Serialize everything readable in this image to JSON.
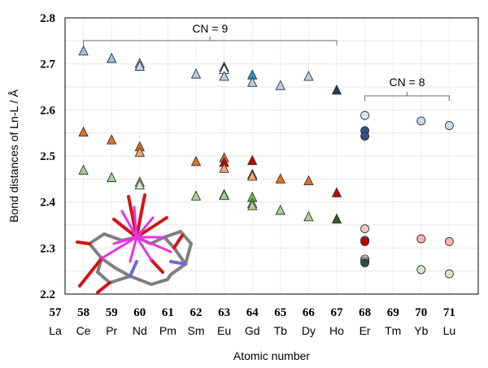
{
  "chart_data": {
    "type": "scatter",
    "xlabel": "Atomic number",
    "ylabel": "Bond distances of Ln-L / Å",
    "ylim": [
      2.2,
      2.8
    ],
    "yticks": [
      "2.8",
      "2.7",
      "2.6",
      "2.5",
      "2.4",
      "2.3",
      "2.2"
    ],
    "xlim": [
      57,
      71
    ],
    "x_ticks": [
      {
        "num": "57",
        "sym": "La"
      },
      {
        "num": "58",
        "sym": "Ce"
      },
      {
        "num": "59",
        "sym": "Pr"
      },
      {
        "num": "60",
        "sym": "Nd"
      },
      {
        "num": "61",
        "sym": "Pm"
      },
      {
        "num": "62",
        "sym": "Sm"
      },
      {
        "num": "63",
        "sym": "Eu"
      },
      {
        "num": "64",
        "sym": "Gd"
      },
      {
        "num": "65",
        "sym": "Tb"
      },
      {
        "num": "66",
        "sym": "Dy"
      },
      {
        "num": "67",
        "sym": "Ho"
      },
      {
        "num": "68",
        "sym": "Er"
      },
      {
        "num": "69",
        "sym": "Tm"
      },
      {
        "num": "70",
        "sym": "Yb"
      },
      {
        "num": "71",
        "sym": "Lu"
      }
    ],
    "grid": true,
    "annotations": [
      {
        "text": "CN = 9",
        "from": 58,
        "to": 67
      },
      {
        "text": "CN = 8",
        "from": 68,
        "to": 71
      }
    ],
    "series": [
      {
        "marker": "triangle",
        "group": "CN9-long",
        "points": [
          {
            "x": 58,
            "y": 2.728,
            "color": "#9fbfe0"
          },
          {
            "x": 59,
            "y": 2.712,
            "color": "#9fbfe0"
          },
          {
            "x": 60,
            "y": 2.701,
            "color": "#9fbfe0"
          },
          {
            "x": 60,
            "y": 2.695,
            "color": "#c9dced"
          },
          {
            "x": 62,
            "y": 2.678,
            "color": "#b8cfe6"
          },
          {
            "x": 63,
            "y": 2.693,
            "color": "#1f3b57"
          },
          {
            "x": 63,
            "y": 2.688,
            "color": "#ffffff"
          },
          {
            "x": 63,
            "y": 2.673,
            "color": "#b8cfe6"
          },
          {
            "x": 64,
            "y": 2.676,
            "color": "#1f9ad6"
          },
          {
            "x": 64,
            "y": 2.66,
            "color": "#b8cfe6"
          },
          {
            "x": 65,
            "y": 2.653,
            "color": "#b8cfe6"
          },
          {
            "x": 66,
            "y": 2.673,
            "color": "#b8cfe6"
          },
          {
            "x": 67,
            "y": 2.643,
            "color": "#1f3b57"
          }
        ]
      },
      {
        "marker": "triangle",
        "group": "CN9-mid",
        "points": [
          {
            "x": 58,
            "y": 2.552,
            "color": "#e8701e"
          },
          {
            "x": 59,
            "y": 2.535,
            "color": "#e8701e"
          },
          {
            "x": 60,
            "y": 2.52,
            "color": "#e8701e"
          },
          {
            "x": 60,
            "y": 2.508,
            "color": "#f4a46a"
          },
          {
            "x": 62,
            "y": 2.488,
            "color": "#e8701e"
          },
          {
            "x": 63,
            "y": 2.496,
            "color": "#e8701e"
          },
          {
            "x": 63,
            "y": 2.486,
            "color": "#c00000"
          },
          {
            "x": 63,
            "y": 2.473,
            "color": "#f4a46a"
          },
          {
            "x": 64,
            "y": 2.49,
            "color": "#c00000"
          },
          {
            "x": 64,
            "y": 2.46,
            "color": "#e8701e"
          },
          {
            "x": 64,
            "y": 2.456,
            "color": "#f4a46a"
          },
          {
            "x": 65,
            "y": 2.45,
            "color": "#e8701e"
          },
          {
            "x": 66,
            "y": 2.446,
            "color": "#e8701e"
          },
          {
            "x": 67,
            "y": 2.42,
            "color": "#c00000"
          }
        ]
      },
      {
        "marker": "triangle",
        "group": "CN9-short",
        "points": [
          {
            "x": 58,
            "y": 2.469,
            "color": "#a9d18e"
          },
          {
            "x": 59,
            "y": 2.453,
            "color": "#a9d18e"
          },
          {
            "x": 60,
            "y": 2.443,
            "color": "#a9d18e"
          },
          {
            "x": 60,
            "y": 2.437,
            "color": "#d5e8c8"
          },
          {
            "x": 62,
            "y": 2.413,
            "color": "#a9d18e"
          },
          {
            "x": 63,
            "y": 2.416,
            "color": "#385723"
          },
          {
            "x": 63,
            "y": 2.414,
            "color": "#a9d18e"
          },
          {
            "x": 64,
            "y": 2.41,
            "color": "#66cc33"
          },
          {
            "x": 64,
            "y": 2.397,
            "color": "#d5e8c8"
          },
          {
            "x": 64,
            "y": 2.392,
            "color": "#a9d18e"
          },
          {
            "x": 65,
            "y": 2.382,
            "color": "#a9d18e"
          },
          {
            "x": 66,
            "y": 2.368,
            "color": "#a9d18e"
          },
          {
            "x": 67,
            "y": 2.363,
            "color": "#385723"
          }
        ]
      },
      {
        "marker": "circle",
        "group": "CN8-long",
        "points": [
          {
            "x": 68,
            "y": 2.588,
            "color": "#dbe8f5"
          },
          {
            "x": 68,
            "y": 2.555,
            "color": "#2e5481"
          },
          {
            "x": 68,
            "y": 2.543,
            "color": "#2e5481"
          },
          {
            "x": 70,
            "y": 2.576,
            "color": "#c9dced"
          },
          {
            "x": 71,
            "y": 2.566,
            "color": "#c9dced"
          }
        ]
      },
      {
        "marker": "circle",
        "group": "CN8-mid",
        "points": [
          {
            "x": 68,
            "y": 2.342,
            "color": "#f4c7c3"
          },
          {
            "x": 68,
            "y": 2.317,
            "color": "#ff3b3b"
          },
          {
            "x": 68,
            "y": 2.314,
            "color": "#c00000"
          },
          {
            "x": 70,
            "y": 2.32,
            "color": "#f4b5b0"
          },
          {
            "x": 71,
            "y": 2.314,
            "color": "#f4b5b0"
          }
        ]
      },
      {
        "marker": "circle",
        "group": "CN8-short",
        "points": [
          {
            "x": 68,
            "y": 2.276,
            "color": "#ffffff"
          },
          {
            "x": 68,
            "y": 2.272,
            "color": "#e2efda"
          },
          {
            "x": 68,
            "y": 2.268,
            "color": "#2f4f2f"
          },
          {
            "x": 70,
            "y": 2.253,
            "color": "#d5e8c8"
          },
          {
            "x": 71,
            "y": 2.244,
            "color": "#d5e8c8"
          }
        ]
      }
    ]
  }
}
